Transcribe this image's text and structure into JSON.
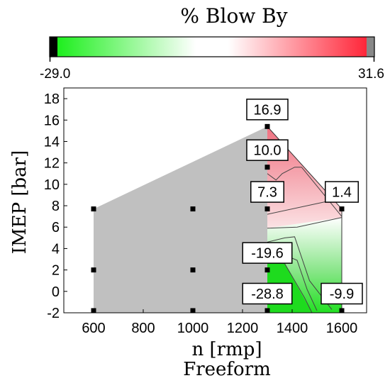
{
  "chart_data": {
    "type": "contour",
    "title": "% Blow By",
    "subtitle": "Freeform",
    "xlabel": "n [rmp]",
    "ylabel": "IMEP [bar]",
    "xlim": [
      480,
      1700
    ],
    "ylim": [
      -2,
      19
    ],
    "x_ticks": [
      600,
      800,
      1000,
      1200,
      1400,
      1600
    ],
    "y_ticks": [
      -2,
      0,
      2,
      4,
      6,
      8,
      10,
      12,
      14,
      16,
      18
    ],
    "colorbar": {
      "min": -29.0,
      "max": 31.6,
      "min_label": "-29.0",
      "max_label": "31.6",
      "colors": [
        "#000000",
        "#11ee11",
        "#ffffff",
        "#ff1a2e",
        "#888888"
      ]
    },
    "gray_region": {
      "color": "#c0c0c0",
      "polygon": [
        [
          600,
          -2
        ],
        [
          600,
          7.7
        ],
        [
          1300,
          15.4
        ],
        [
          1300,
          -2
        ]
      ]
    },
    "measured_points": [
      {
        "x": 600,
        "y": -1.8
      },
      {
        "x": 600,
        "y": 2.0
      },
      {
        "x": 600,
        "y": 7.7
      },
      {
        "x": 1000,
        "y": -1.8
      },
      {
        "x": 1000,
        "y": 2.0
      },
      {
        "x": 1000,
        "y": 7.7
      },
      {
        "x": 1300,
        "y": -1.8
      },
      {
        "x": 1300,
        "y": 2.0
      },
      {
        "x": 1300,
        "y": 7.7
      },
      {
        "x": 1300,
        "y": 11.6
      },
      {
        "x": 1300,
        "y": 15.4
      },
      {
        "x": 1600,
        "y": -1.8
      },
      {
        "x": 1600,
        "y": 7.7
      }
    ],
    "value_labels": [
      {
        "text": "16.9",
        "x": 1300,
        "y": 15.4
      },
      {
        "text": "10.0",
        "x": 1300,
        "y": 11.6
      },
      {
        "text": "7.3",
        "x": 1300,
        "y": 7.7
      },
      {
        "text": "1.4",
        "x": 1600,
        "y": 7.7
      },
      {
        "text": "-19.6",
        "x": 1300,
        "y": 2.0
      },
      {
        "text": "-28.8",
        "x": 1300,
        "y": -1.8
      },
      {
        "text": "-9.9",
        "x": 1600,
        "y": -1.8
      }
    ]
  }
}
